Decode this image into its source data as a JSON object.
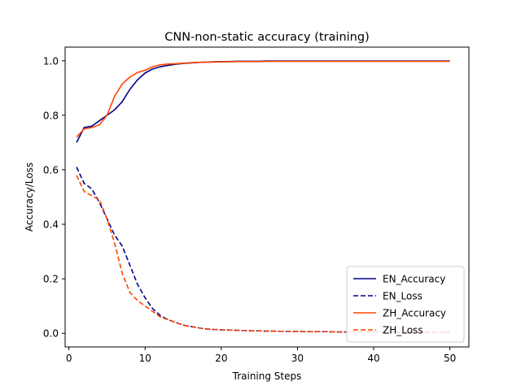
{
  "chart_data": {
    "type": "line",
    "title": "CNN-non-static accuracy (training)",
    "xlabel": "Training Steps",
    "ylabel": "Accuracy/Loss",
    "xlim": [
      -0.5,
      52.5
    ],
    "ylim": [
      -0.05,
      1.05
    ],
    "xticks": [
      0,
      10,
      20,
      30,
      40,
      50
    ],
    "yticks": [
      0.0,
      0.2,
      0.4,
      0.6,
      0.8,
      1.0
    ],
    "xtick_labels": [
      "0",
      "10",
      "20",
      "30",
      "40",
      "50"
    ],
    "ytick_labels": [
      "0.0",
      "0.2",
      "0.4",
      "0.6",
      "0.8",
      "1.0"
    ],
    "grid": false,
    "legend_position": "lower-right",
    "x": [
      1,
      2,
      3,
      4,
      5,
      6,
      7,
      8,
      9,
      10,
      11,
      12,
      13,
      14,
      15,
      16,
      17,
      18,
      19,
      20,
      21,
      22,
      23,
      24,
      25,
      26,
      27,
      28,
      29,
      30,
      31,
      32,
      33,
      34,
      35,
      36,
      37,
      38,
      39,
      40,
      41,
      42,
      43,
      44,
      45,
      46,
      47,
      48,
      49,
      50
    ],
    "series": [
      {
        "name": "EN_Accuracy",
        "color": "#00008b",
        "dash": "solid",
        "values": [
          0.7,
          0.755,
          0.76,
          0.78,
          0.8,
          0.82,
          0.85,
          0.895,
          0.93,
          0.955,
          0.97,
          0.978,
          0.983,
          0.987,
          0.99,
          0.992,
          0.994,
          0.995,
          0.996,
          0.997,
          0.997,
          0.998,
          0.998,
          0.998,
          0.998,
          0.999,
          0.999,
          0.999,
          0.999,
          0.999,
          0.999,
          0.999,
          0.999,
          0.999,
          0.999,
          0.999,
          0.999,
          0.999,
          0.999,
          0.999,
          0.999,
          0.999,
          0.999,
          0.999,
          0.999,
          0.999,
          0.999,
          0.999,
          0.999,
          0.999
        ]
      },
      {
        "name": "EN_Loss",
        "color": "#00008b",
        "dash": "dashed",
        "values": [
          0.61,
          0.55,
          0.53,
          0.48,
          0.42,
          0.36,
          0.32,
          0.25,
          0.18,
          0.13,
          0.09,
          0.065,
          0.05,
          0.04,
          0.03,
          0.025,
          0.02,
          0.016,
          0.014,
          0.013,
          0.012,
          0.011,
          0.01,
          0.009,
          0.009,
          0.008,
          0.008,
          0.007,
          0.007,
          0.007,
          0.006,
          0.006,
          0.006,
          0.006,
          0.005,
          0.005,
          0.005,
          0.005,
          0.005,
          0.005,
          0.005,
          0.004,
          0.004,
          0.004,
          0.004,
          0.004,
          0.004,
          0.004,
          0.004,
          0.004
        ]
      },
      {
        "name": "ZH_Accuracy",
        "color": "#ff4500",
        "dash": "solid",
        "values": [
          0.72,
          0.75,
          0.755,
          0.765,
          0.8,
          0.87,
          0.915,
          0.94,
          0.957,
          0.965,
          0.978,
          0.985,
          0.988,
          0.989,
          0.991,
          0.993,
          0.994,
          0.995,
          0.995,
          0.996,
          0.996,
          0.997,
          0.997,
          0.997,
          0.997,
          0.998,
          0.998,
          0.998,
          0.998,
          0.998,
          0.998,
          0.998,
          0.998,
          0.998,
          0.998,
          0.998,
          0.998,
          0.998,
          0.998,
          0.998,
          0.998,
          0.998,
          0.998,
          0.998,
          0.998,
          0.998,
          0.998,
          0.998,
          0.998,
          0.998
        ]
      },
      {
        "name": "ZH_Loss",
        "color": "#ff4500",
        "dash": "dashed",
        "values": [
          0.58,
          0.52,
          0.505,
          0.49,
          0.42,
          0.33,
          0.22,
          0.15,
          0.12,
          0.1,
          0.08,
          0.06,
          0.05,
          0.04,
          0.03,
          0.024,
          0.02,
          0.016,
          0.014,
          0.013,
          0.012,
          0.011,
          0.01,
          0.009,
          0.009,
          0.008,
          0.008,
          0.007,
          0.007,
          0.007,
          0.006,
          0.006,
          0.006,
          0.006,
          0.005,
          0.005,
          0.005,
          0.005,
          0.005,
          0.005,
          0.005,
          0.004,
          0.004,
          0.004,
          0.004,
          0.004,
          0.004,
          0.004,
          0.004,
          0.004
        ]
      }
    ]
  }
}
